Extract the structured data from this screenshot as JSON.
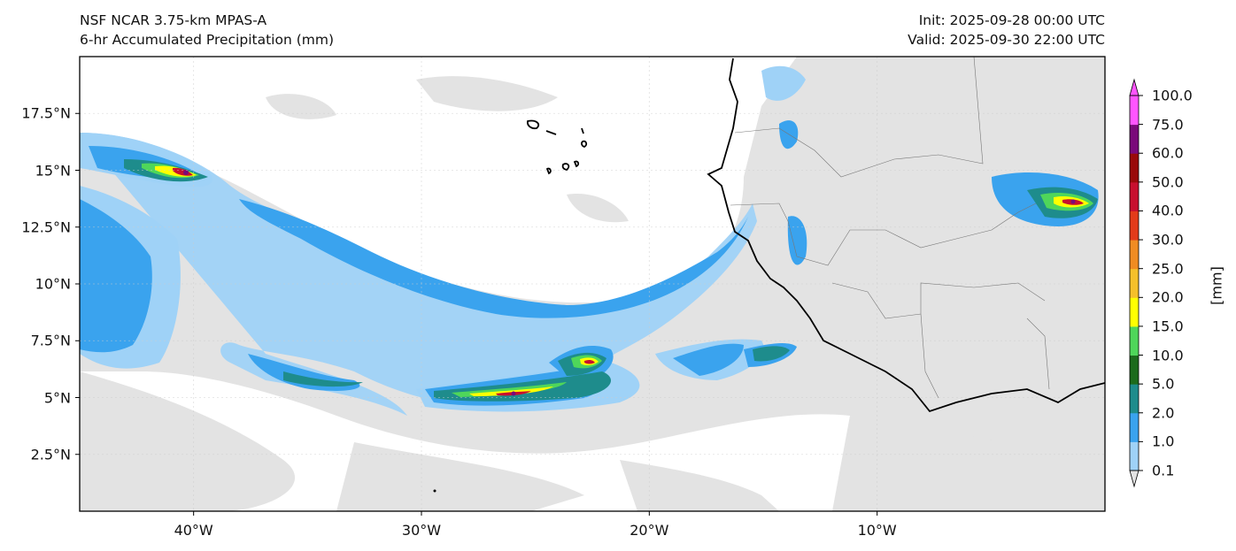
{
  "header": {
    "model": "NSF NCAR 3.75-km MPAS-A",
    "field": "6-hr Accumulated Precipitation (mm)",
    "init": "Init: 2025-09-28 00:00 UTC",
    "valid": "Valid: 2025-09-30 22:00 UTC"
  },
  "map": {
    "lon_range": [
      -45,
      0
    ],
    "lat_range": [
      0,
      20
    ],
    "lat_ticks": [
      {
        "value": 17.5,
        "label": "17.5°N"
      },
      {
        "value": 15,
        "label": "15°N"
      },
      {
        "value": 12.5,
        "label": "12.5°N"
      },
      {
        "value": 10,
        "label": "10°N"
      },
      {
        "value": 7.5,
        "label": "7.5°N"
      },
      {
        "value": 5,
        "label": "5°N"
      },
      {
        "value": 2.5,
        "label": "2.5°N"
      }
    ],
    "lon_ticks": [
      {
        "value": -40,
        "label": "40°W"
      },
      {
        "value": -30,
        "label": "30°W"
      },
      {
        "value": -20,
        "label": "20°W"
      },
      {
        "value": -10,
        "label": "10°W"
      }
    ],
    "gridlines": true
  },
  "colorbar": {
    "unit": "[mm]",
    "levels": [
      "0.1",
      "1.0",
      "2.0",
      "5.0",
      "10.0",
      "15.0",
      "20.0",
      "25.0",
      "30.0",
      "40.0",
      "50.0",
      "60.0",
      "75.0",
      "100.0"
    ],
    "colors": [
      "#e3e3e3",
      "#9fd2f7",
      "#3aa3ee",
      "#1e8c8c",
      "#1c6b1c",
      "#4fd65a",
      "#ffff00",
      "#f5c02a",
      "#f08c22",
      "#e33b1a",
      "#c8102e",
      "#9a0a0a",
      "#7a0a7a",
      "#ff55ff"
    ]
  }
}
